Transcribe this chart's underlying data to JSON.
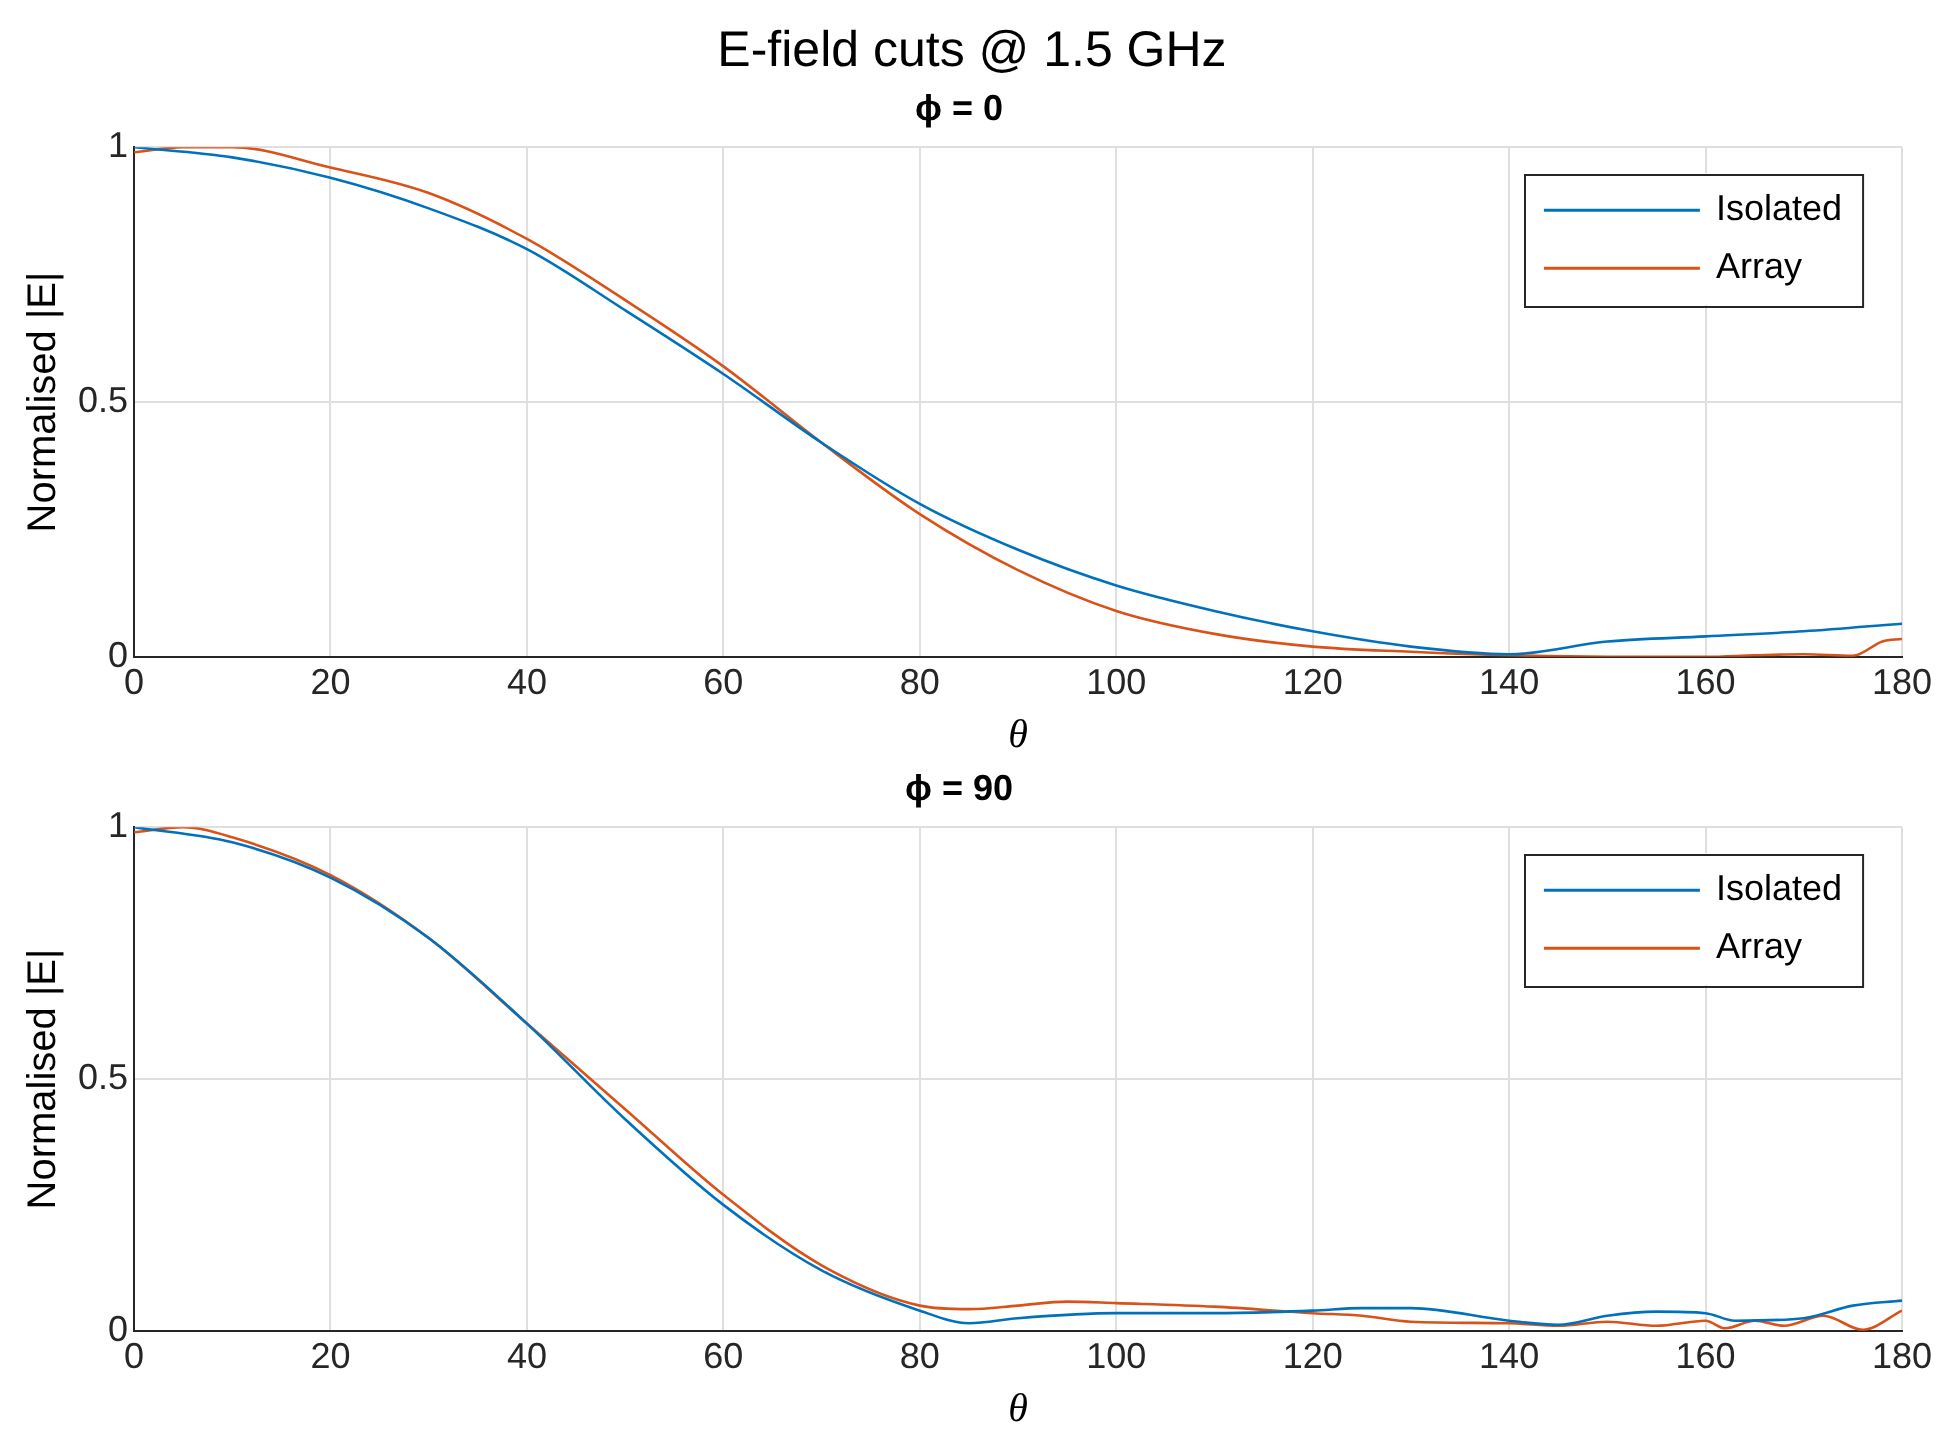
{
  "chart_data": [
    {
      "type": "line",
      "title": "ϕ = 0",
      "annotations": [
        "E-field cuts @ 1.5 GHz"
      ],
      "xlabel": "θ",
      "ylabel": "Normalised |E|",
      "xlim": [
        0,
        180
      ],
      "xticks": [
        0,
        20,
        40,
        60,
        80,
        100,
        120,
        140,
        160,
        180
      ],
      "ylim": [
        0,
        1
      ],
      "yticks": [
        0,
        0.5,
        1
      ],
      "grid": true,
      "legend": "top right",
      "marker": "none",
      "line_style": "solid",
      "series": [
        {
          "name": "Isolated",
          "color": "#0072bd",
          "x": [
            0,
            10,
            20,
            30,
            40,
            50,
            60,
            70,
            80,
            90,
            100,
            110,
            120,
            130,
            140,
            150,
            160,
            170,
            180
          ],
          "values": [
            1,
            0.98,
            0.94,
            0.88,
            0.8,
            0.68,
            0.555,
            0.42,
            0.3,
            0.21,
            0.14,
            0.09,
            0.05,
            0.02,
            0.005,
            0.03,
            0.04,
            0.05,
            0.065
          ]
        },
        {
          "name": "Array",
          "color": "#d95319",
          "x": [
            0,
            5,
            10,
            20,
            30,
            40,
            50,
            60,
            70,
            80,
            90,
            100,
            110,
            120,
            130,
            140,
            150,
            160,
            165,
            170,
            175,
            178,
            180
          ],
          "values": [
            0.99,
            1,
            1,
            0.96,
            0.91,
            0.82,
            0.7,
            0.57,
            0.42,
            0.28,
            0.17,
            0.09,
            0.045,
            0.02,
            0.01,
            0.003,
            0,
            0,
            0.003,
            0.005,
            0.002,
            0.03,
            0.035
          ]
        }
      ]
    },
    {
      "type": "line",
      "title": "ϕ = 90",
      "xlabel": "θ",
      "ylabel": "Normalised |E|",
      "xlim": [
        0,
        180
      ],
      "xticks": [
        0,
        20,
        40,
        60,
        80,
        100,
        120,
        140,
        160,
        180
      ],
      "ylim": [
        0,
        1
      ],
      "yticks": [
        0,
        0.5,
        1
      ],
      "grid": true,
      "legend": "top right",
      "marker": "none",
      "line_style": "solid",
      "series": [
        {
          "name": "Isolated",
          "color": "#0072bd",
          "x": [
            0,
            10,
            20,
            30,
            40,
            50,
            60,
            70,
            80,
            85,
            90,
            100,
            110,
            120,
            125,
            130,
            140,
            145,
            150,
            155,
            160,
            163,
            170,
            175,
            180
          ],
          "values": [
            1,
            0.97,
            0.9,
            0.78,
            0.61,
            0.42,
            0.25,
            0.12,
            0.04,
            0.015,
            0.025,
            0.035,
            0.035,
            0.04,
            0.045,
            0.045,
            0.02,
            0.012,
            0.03,
            0.038,
            0.035,
            0.02,
            0.025,
            0.05,
            0.06
          ]
        },
        {
          "name": "Array",
          "color": "#d95319",
          "x": [
            0,
            5,
            10,
            20,
            30,
            40,
            50,
            60,
            70,
            80,
            85,
            90,
            95,
            100,
            110,
            120,
            125,
            130,
            140,
            145,
            150,
            155,
            160,
            162,
            165,
            168,
            172,
            176,
            180
          ],
          "values": [
            0.99,
            1,
            0.98,
            0.905,
            0.78,
            0.61,
            0.44,
            0.27,
            0.13,
            0.05,
            0.043,
            0.05,
            0.058,
            0.055,
            0.048,
            0.035,
            0.03,
            0.018,
            0.015,
            0.01,
            0.018,
            0.01,
            0.02,
            0.005,
            0.02,
            0.01,
            0.03,
            0.002,
            0.04
          ]
        }
      ]
    }
  ]
}
